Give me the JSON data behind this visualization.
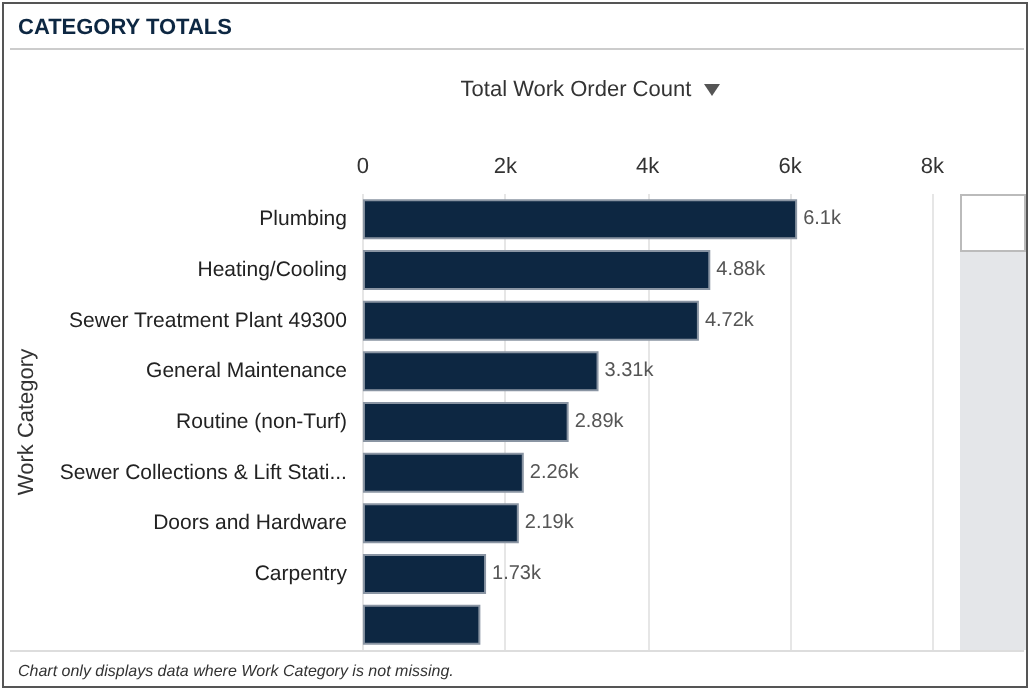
{
  "chart_data": {
    "type": "bar",
    "orientation": "horizontal",
    "title": "CATEGORY TOTALS",
    "xlabel": "Total Work Order Count",
    "ylabel": "Work Category",
    "categories": [
      "Plumbing",
      "Heating/Cooling",
      "Sewer Treatment Plant 49300",
      "General Maintenance",
      "Routine (non-Turf)",
      "Sewer Collections & Lift Stati...",
      "Doors and Hardware",
      "Carpentry",
      null
    ],
    "values": [
      6100,
      4880,
      4720,
      3310,
      2890,
      2260,
      2190,
      1730,
      1650
    ],
    "value_labels": [
      "6.1k",
      "4.88k",
      "4.72k",
      "3.31k",
      "2.89k",
      "2.26k",
      "2.19k",
      "1.73k",
      null
    ],
    "color": "#0d2742",
    "xlim": [
      0,
      8000
    ],
    "xticks": [
      {
        "value": 0,
        "label": "0"
      },
      {
        "value": 2000,
        "label": "2k"
      },
      {
        "value": 4000,
        "label": "4k"
      },
      {
        "value": 6000,
        "label": "6k"
      },
      {
        "value": 8000,
        "label": "8k"
      }
    ],
    "grid": "x",
    "annotations": [
      "Chart only displays data where Work Category is not missing."
    ]
  }
}
